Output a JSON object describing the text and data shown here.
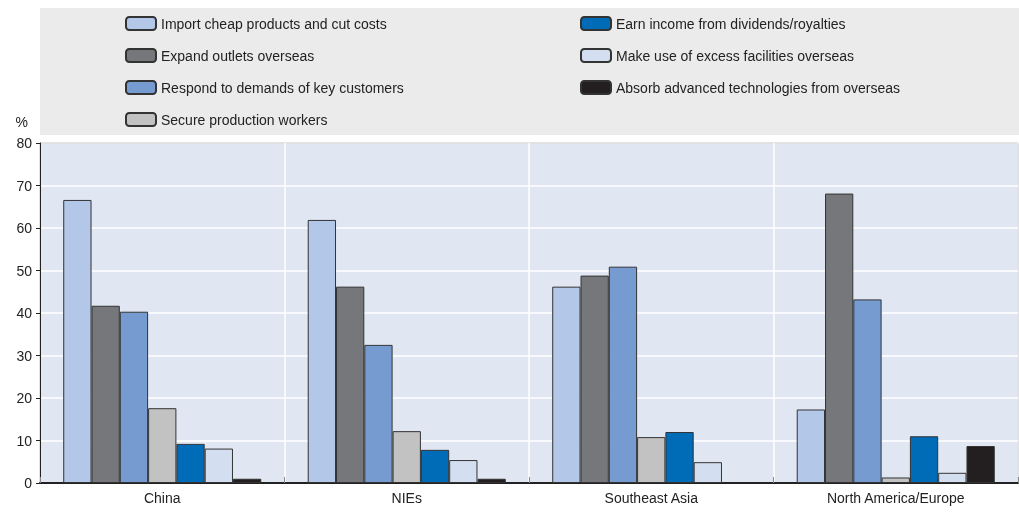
{
  "chart_data": {
    "type": "bar",
    "ylabel": "%",
    "categories": [
      "China",
      "NIEs",
      "Southeast Asia",
      "North America/Europe"
    ],
    "ylim": [
      0,
      80
    ],
    "yticks": [
      0,
      10,
      20,
      30,
      40,
      50,
      60,
      70,
      80
    ],
    "grid": true,
    "legend": "top",
    "series": [
      {
        "name": "Import cheap products and cut costs",
        "color": "#b3c7e8",
        "values": [
          66.6,
          61.9,
          46.2,
          17.3
        ]
      },
      {
        "name": "Expand outlets overseas",
        "color": "#76777b",
        "values": [
          41.7,
          46.2,
          48.8,
          68.1
        ]
      },
      {
        "name": "Respond to demands of key customers",
        "color": "#769bd1",
        "values": [
          40.3,
          32.5,
          50.9,
          43.2
        ]
      },
      {
        "name": "Secure production workers",
        "color": "#c2c2c2",
        "values": [
          17.6,
          12.2,
          10.8,
          1.3
        ]
      },
      {
        "name": "Earn income from dividends/royalties",
        "color": "#006bb6",
        "values": [
          9.2,
          7.8,
          12.0,
          11.0
        ]
      },
      {
        "name": "Make use of excess facilities overseas",
        "color": "#d3dff0",
        "values": [
          8.1,
          5.4,
          4.9,
          2.4
        ]
      },
      {
        "name": "Absorb advanced technologies from overseas",
        "color": "#231f20",
        "values": [
          1.0,
          1.0,
          null,
          8.7
        ]
      }
    ]
  }
}
